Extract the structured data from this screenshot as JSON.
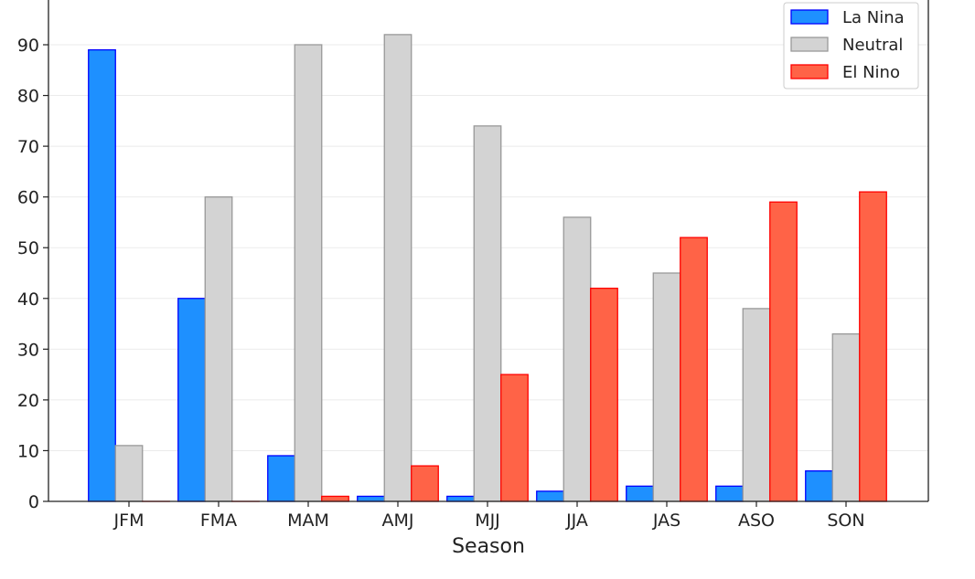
{
  "chart_data": {
    "type": "bar",
    "title": "",
    "xlabel": "Season",
    "ylabel": "",
    "categories": [
      "JFM",
      "FMA",
      "MAM",
      "AMJ",
      "MJJ",
      "JJA",
      "JAS",
      "ASO",
      "SON"
    ],
    "series": [
      {
        "name": "La Nina",
        "fill": "#1e90ff",
        "stroke": "#0000ff",
        "values": [
          89,
          40,
          9,
          1,
          1,
          2,
          3,
          3,
          6
        ]
      },
      {
        "name": "Neutral",
        "fill": "#d3d3d3",
        "stroke": "#999999",
        "values": [
          11,
          60,
          90,
          92,
          74,
          56,
          45,
          38,
          33
        ]
      },
      {
        "name": "El Nino",
        "fill": "#ff6347",
        "stroke": "#ff0000",
        "values": [
          0,
          0,
          1,
          7,
          25,
          42,
          52,
          59,
          61
        ]
      }
    ],
    "ylim": [
      0,
      99
    ],
    "yticks": [
      0,
      10,
      20,
      30,
      40,
      50,
      60,
      70,
      80,
      90
    ],
    "grid": true,
    "legend": "top-right"
  }
}
